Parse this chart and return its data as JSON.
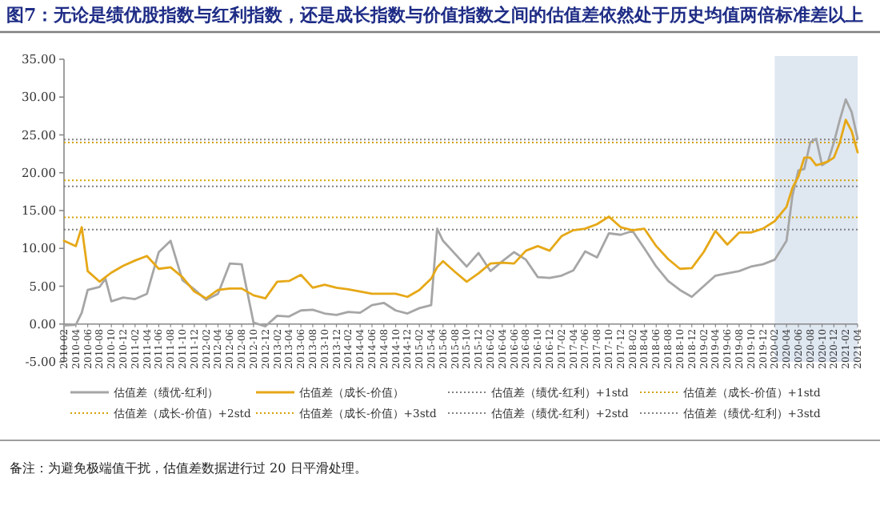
{
  "chart_data": {
    "type": "line",
    "title": "图7：无论是绩优股指数与红利指数，还是成长指数与价值指数之间的估值差依然处于历史均值两倍标准差以上",
    "annotations": [
      "备注：为避免极端值干扰，估值差数据进行过 20 日平滑处理。"
    ],
    "x": [
      "2010-02",
      "2010-04",
      "2010-05",
      "2010-06",
      "2010-08",
      "2010-09",
      "2010-10",
      "2010-12",
      "2011-02",
      "2011-04",
      "2011-06",
      "2011-08",
      "2011-10",
      "2011-12",
      "2012-02",
      "2012-04",
      "2012-06",
      "2012-08",
      "2012-10",
      "2012-12",
      "2013-02",
      "2013-04",
      "2013-06",
      "2013-08",
      "2013-10",
      "2013-12",
      "2014-02",
      "2014-04",
      "2014-06",
      "2014-08",
      "2014-10",
      "2014-12",
      "2015-02",
      "2015-04",
      "2015-05",
      "2015-06",
      "2015-08",
      "2015-10",
      "2015-12",
      "2016-02",
      "2016-04",
      "2016-06",
      "2016-08",
      "2016-10",
      "2016-12",
      "2017-02",
      "2017-04",
      "2017-06",
      "2017-08",
      "2017-10",
      "2017-12",
      "2018-02",
      "2018-04",
      "2018-06",
      "2018-08",
      "2018-10",
      "2018-12",
      "2019-02",
      "2019-04",
      "2019-06",
      "2019-08",
      "2019-10",
      "2019-12",
      "2020-02",
      "2020-04",
      "2020-05",
      "2020-06",
      "2020-07",
      "2020-08",
      "2020-09",
      "2020-10",
      "2020-11",
      "2020-12",
      "2021-01",
      "2021-02",
      "2021-03",
      "2021-04"
    ],
    "series": [
      {
        "name": "估值差（绩优-红利）",
        "color": "#a6a6a6",
        "values": [
          -0.2,
          -0.1,
          1.5,
          4.5,
          4.9,
          6.0,
          3.0,
          3.5,
          3.3,
          4.0,
          9.5,
          11.0,
          5.8,
          4.6,
          3.2,
          4.0,
          8.0,
          7.9,
          0.2,
          -0.3,
          1.1,
          1.0,
          1.8,
          1.9,
          1.4,
          1.2,
          1.6,
          1.5,
          2.5,
          2.8,
          1.8,
          1.4,
          2.1,
          2.5,
          12.6,
          11.0,
          9.3,
          7.6,
          9.4,
          7.0,
          8.3,
          9.5,
          8.5,
          6.2,
          6.1,
          6.4,
          7.1,
          9.6,
          8.8,
          12.0,
          11.8,
          12.3,
          10.0,
          7.6,
          5.7,
          4.5,
          3.6,
          5.0,
          6.4,
          6.7,
          7.0,
          7.6,
          7.9,
          8.5,
          11,
          17,
          20.3,
          20.5,
          24,
          24.5,
          21,
          21.5,
          24,
          27,
          29.7,
          28,
          24.5
        ]
      },
      {
        "name": "估值差（成长-价值）",
        "color": "#e6a817",
        "values": [
          11.0,
          10.3,
          12.8,
          7.0,
          5.6,
          6.2,
          6.8,
          7.7,
          8.4,
          9.0,
          7.3,
          7.5,
          6.2,
          4.3,
          3.4,
          4.5,
          4.7,
          4.7,
          3.8,
          3.4,
          5.6,
          5.7,
          6.5,
          4.8,
          5.2,
          4.8,
          4.6,
          4.3,
          4.0,
          4.0,
          4.0,
          3.6,
          4.5,
          6.0,
          7.5,
          8.3,
          6.9,
          5.6,
          6.7,
          8.0,
          8.1,
          8.0,
          9.7,
          10.3,
          9.7,
          11.6,
          12.4,
          12.6,
          13.2,
          14.2,
          12.8,
          12.4,
          12.6,
          10.3,
          8.6,
          7.3,
          7.4,
          9.5,
          12.3,
          10.5,
          12.1,
          12.1,
          12.6,
          13.6,
          15.5,
          18,
          19.5,
          22,
          22,
          21,
          21.2,
          21.5,
          22,
          24,
          27,
          25.5,
          22.7
        ]
      }
    ],
    "ref_lines": [
      {
        "axis": "y",
        "value": 12.5,
        "label": "估值差（绩优-红利）+1std",
        "color": "#808080",
        "line_style": "dotted"
      },
      {
        "axis": "y",
        "value": 14.1,
        "label": "估值差（成长-价值）+1std",
        "color": "#d4a20a",
        "line_style": "dotted"
      },
      {
        "axis": "y",
        "value": 19.0,
        "label": "估值差（成长-价值）+2std",
        "color": "#d4a20a",
        "line_style": "dotted"
      },
      {
        "axis": "y",
        "value": 24.0,
        "label": "估值差（成长-价值）+3std",
        "color": "#d4a20a",
        "line_style": "dotted"
      },
      {
        "axis": "y",
        "value": 18.2,
        "label": "估值差（绩优-红利）+2std",
        "color": "#808080",
        "line_style": "dotted"
      },
      {
        "axis": "y",
        "value": 24.4,
        "label": "估值差（绩优-红利）+3std",
        "color": "#808080",
        "line_style": "dotted"
      }
    ],
    "bands": [
      {
        "axis": "x",
        "from": "2020-02",
        "to": "2021-04",
        "color": "#dfe7f1"
      }
    ],
    "xlim": [
      "2010-02",
      "2021-04"
    ],
    "xticks": [
      "2010-02",
      "2010-04",
      "2010-06",
      "2010-08",
      "2010-10",
      "2010-12",
      "2011-02",
      "2011-04",
      "2011-06",
      "2011-08",
      "2011-10",
      "2011-12",
      "2012-02",
      "2012-04",
      "2012-06",
      "2012-08",
      "2012-10",
      "2012-12",
      "2013-02",
      "2013-04",
      "2013-06",
      "2013-08",
      "2013-10",
      "2013-12",
      "2014-02",
      "2014-04",
      "2014-06",
      "2014-08",
      "2014-10",
      "2014-12",
      "2015-02",
      "2015-04",
      "2015-06",
      "2015-08",
      "2015-10",
      "2015-12",
      "2016-02",
      "2016-04",
      "2016-06",
      "2016-08",
      "2016-10",
      "2016-12",
      "2017-02",
      "2017-04",
      "2017-06",
      "2017-08",
      "2017-10",
      "2017-12",
      "2018-02",
      "2018-04",
      "2018-06",
      "2018-08",
      "2018-10",
      "2018-12",
      "2019-02",
      "2019-04",
      "2019-06",
      "2019-08",
      "2019-10",
      "2019-12",
      "2020-02",
      "2020-04",
      "2020-06",
      "2020-08",
      "2020-10",
      "2020-12",
      "2021-02",
      "2021-04"
    ],
    "ylim": [
      -5,
      35
    ],
    "yticks": [
      {
        "value": -5,
        "label": "-5.00"
      },
      {
        "value": 0,
        "label": "0.00"
      },
      {
        "value": 5,
        "label": "5.00"
      },
      {
        "value": 10,
        "label": "10.00"
      },
      {
        "value": 15,
        "label": "15.00"
      },
      {
        "value": 20,
        "label": "20.00"
      },
      {
        "value": 25,
        "label": "25.00"
      },
      {
        "value": 30,
        "label": "30.00"
      },
      {
        "value": 35,
        "label": "35.00"
      }
    ],
    "grid": false,
    "legend": "bottom",
    "marker": "none",
    "line_style": "solid"
  }
}
